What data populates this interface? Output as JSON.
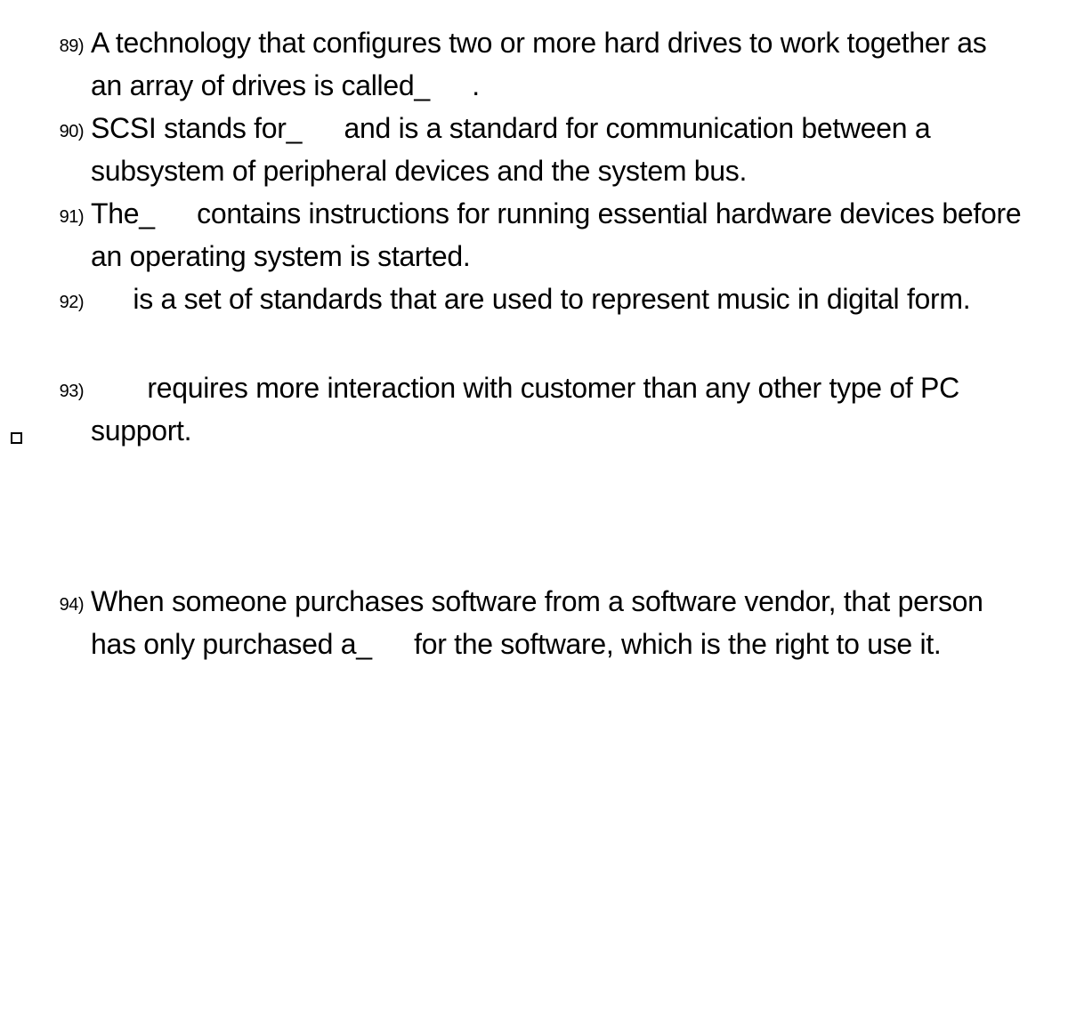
{
  "questions": [
    {
      "num": "89)",
      "text": "A technology that configures two or more hard drives to work together as an array of drives is called_  ."
    },
    {
      "num": "90)",
      "text": "SCSI stands for_  and is a standard for communication between a subsystem of peripheral devices and the system bus."
    },
    {
      "num": "91)",
      "text": "The_  contains instructions for running essential hardware devices before an operating system is started."
    },
    {
      "num": "92)",
      "text": "  is a set of standards that are used to represent music in digital form."
    },
    {
      "num": "93)",
      "text": "  requires more interaction with customer than any other type of PC support."
    },
    {
      "num": "94)",
      "text": "When someone purchases software from a software vendor, that person has only purchased a_  for the software, which is the right to use it."
    }
  ]
}
